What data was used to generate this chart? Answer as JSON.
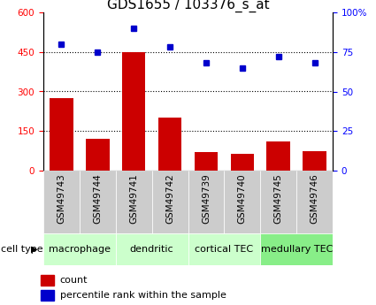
{
  "title": "GDS1655 / 103376_s_at",
  "samples": [
    "GSM49743",
    "GSM49744",
    "GSM49741",
    "GSM49742",
    "GSM49739",
    "GSM49740",
    "GSM49745",
    "GSM49746"
  ],
  "counts": [
    275,
    120,
    450,
    200,
    70,
    65,
    110,
    75
  ],
  "percentiles": [
    80,
    75,
    90,
    78,
    68,
    65,
    72,
    68
  ],
  "cell_types": [
    {
      "label": "macrophage",
      "start": 0,
      "end": 2,
      "color": "#ccffcc"
    },
    {
      "label": "dendritic",
      "start": 2,
      "end": 4,
      "color": "#ccffcc"
    },
    {
      "label": "cortical TEC",
      "start": 4,
      "end": 6,
      "color": "#ccffcc"
    },
    {
      "label": "medullary TEC",
      "start": 6,
      "end": 8,
      "color": "#88ee88"
    }
  ],
  "bar_color": "#cc0000",
  "dot_color": "#0000cc",
  "left_ylim": [
    0,
    600
  ],
  "right_ylim": [
    0,
    100
  ],
  "left_yticks": [
    0,
    150,
    300,
    450,
    600
  ],
  "right_yticks": [
    0,
    25,
    50,
    75,
    100
  ],
  "right_yticklabels": [
    "0",
    "25",
    "50",
    "75",
    "100%"
  ],
  "grid_values": [
    150,
    300,
    450
  ],
  "title_fontsize": 11,
  "tick_label_fontsize": 7.5,
  "legend_fontsize": 8,
  "cell_type_fontsize": 8,
  "sample_box_color": "#cccccc",
  "cell_type_label": "cell type"
}
